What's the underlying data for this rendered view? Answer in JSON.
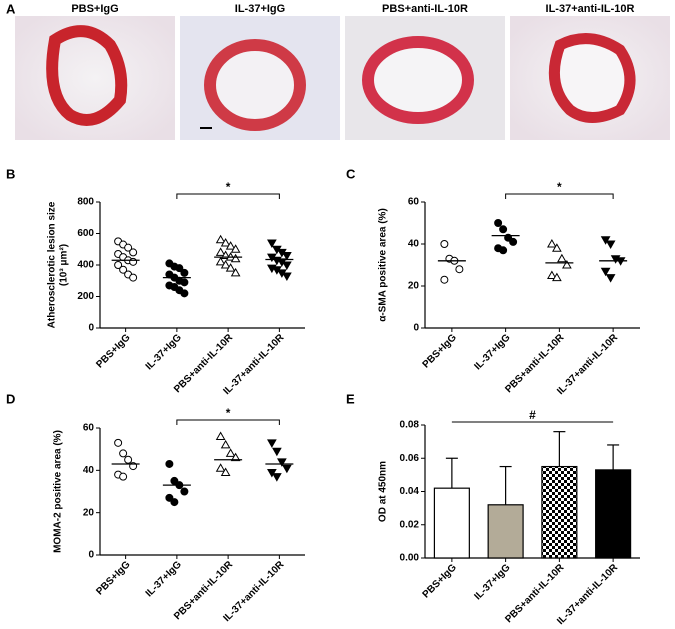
{
  "panel_a": {
    "label": "A",
    "titles": [
      "PBS+IgG",
      "IL-37+IgG",
      "PBS+anti-IL-10R",
      "IL-37+anti-IL-10R"
    ]
  },
  "chart_data": [
    {
      "panel": "B",
      "type": "strip",
      "ylabel": [
        "Atherosclerotic lesion size",
        "(10³ μm²)"
      ],
      "categories": [
        "PBS+IgG",
        "IL-37+IgG",
        "PBS+anti-IL-10R",
        "IL-37+anti-IL-10R"
      ],
      "points": [
        [
          550,
          530,
          510,
          480,
          470,
          450,
          430,
          420,
          400,
          370,
          340,
          320
        ],
        [
          410,
          390,
          380,
          350,
          340,
          320,
          300,
          290,
          270,
          260,
          240,
          220
        ],
        [
          560,
          540,
          520,
          500,
          480,
          460,
          450,
          440,
          420,
          400,
          380,
          350
        ],
        [
          540,
          500,
          480,
          460,
          450,
          430,
          420,
          400,
          380,
          370,
          350,
          330
        ]
      ],
      "means": [
        430,
        320,
        450,
        435
      ],
      "markers": [
        "circle",
        "circle",
        "triangle-up",
        "triangle-down"
      ],
      "filled": [
        false,
        true,
        false,
        true
      ],
      "ylim": [
        0,
        800
      ],
      "yticks": [
        0,
        200,
        400,
        600,
        800
      ],
      "significance": {
        "from": 1,
        "to": 3,
        "label": "*"
      }
    },
    {
      "panel": "C",
      "type": "strip",
      "ylabel": [
        "α-SMA positive area (%)"
      ],
      "categories": [
        "PBS+IgG",
        "IL-37+IgG",
        "PBS+anti-IL-10R",
        "IL-37+anti-IL-10R"
      ],
      "points": [
        [
          40,
          33,
          32,
          28,
          23
        ],
        [
          50,
          47,
          43,
          41,
          38,
          37
        ],
        [
          40,
          38,
          33,
          30,
          25,
          24
        ],
        [
          42,
          40,
          33,
          32,
          27,
          24
        ]
      ],
      "means": [
        32,
        44,
        31,
        32
      ],
      "markers": [
        "circle",
        "circle",
        "triangle-up",
        "triangle-down"
      ],
      "filled": [
        false,
        true,
        false,
        true
      ],
      "ylim": [
        0,
        60
      ],
      "yticks": [
        0,
        20,
        40,
        60
      ],
      "significance": {
        "from": 1,
        "to": 3,
        "label": "*"
      }
    },
    {
      "panel": "D",
      "type": "strip",
      "ylabel": [
        "MOMA-2 positive area (%)"
      ],
      "categories": [
        "PBS+IgG",
        "IL-37+IgG",
        "PBS+anti-IL-10R",
        "IL-37+anti-IL-10R"
      ],
      "points": [
        [
          53,
          48,
          45,
          42,
          38,
          37
        ],
        [
          43,
          35,
          33,
          30,
          27,
          25
        ],
        [
          56,
          52,
          48,
          46,
          41,
          39
        ],
        [
          53,
          49,
          44,
          41,
          39,
          37
        ]
      ],
      "means": [
        43,
        33,
        45,
        43
      ],
      "markers": [
        "circle",
        "circle",
        "triangle-up",
        "triangle-down"
      ],
      "filled": [
        false,
        true,
        false,
        true
      ],
      "ylim": [
        0,
        60
      ],
      "yticks": [
        0,
        20,
        40,
        60
      ],
      "significance": {
        "from": 1,
        "to": 3,
        "label": "*"
      }
    },
    {
      "panel": "E",
      "type": "bar",
      "ylabel": [
        "OD at 450nm"
      ],
      "categories": [
        "PBS+IgG",
        "IL-37+IgG",
        "PBS+anti-IL-10R",
        "IL-37+anti-IL-10R"
      ],
      "values": [
        0.042,
        0.032,
        0.055,
        0.053
      ],
      "errors": [
        0.018,
        0.023,
        0.021,
        0.015
      ],
      "colors": [
        "#ffffff",
        "#b3ab98",
        "#ffffff",
        "#000000"
      ],
      "checkered": [
        false,
        false,
        true,
        false
      ],
      "ylim": [
        0,
        0.08
      ],
      "yticks": [
        {
          "value": 0,
          "label": "0.00"
        },
        {
          "value": 0.02,
          "label": "0.02"
        },
        {
          "value": 0.04,
          "label": "0.04"
        },
        {
          "value": 0.06,
          "label": "0.06"
        },
        {
          "value": 0.08,
          "label": "0.08"
        }
      ],
      "significance": {
        "from": 0,
        "to": 3,
        "label": "#"
      }
    }
  ]
}
